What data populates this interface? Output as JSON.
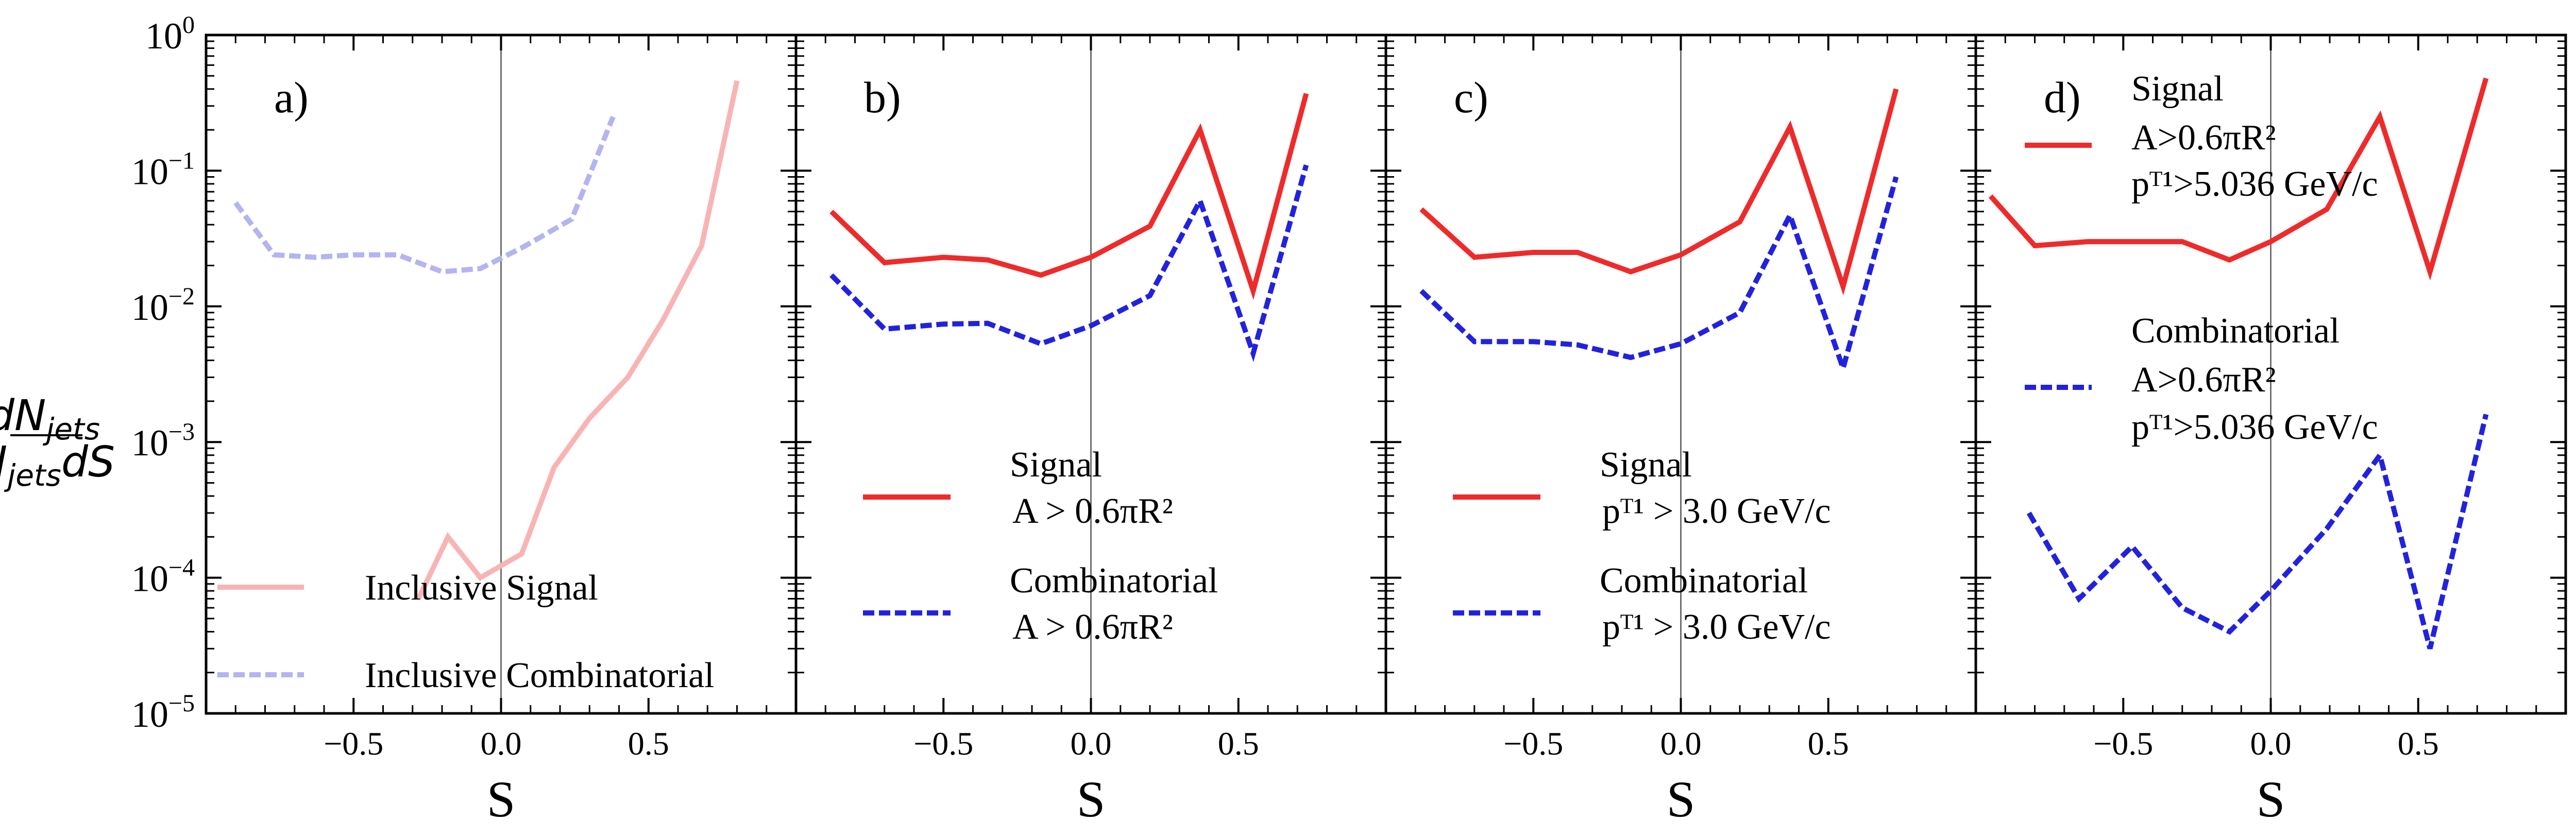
{
  "figure": {
    "ylabel_numerator": "dN",
    "ylabel_numerator_sub": "jets",
    "ylabel_denominator": "N",
    "ylabel_denominator_sub": "jets",
    "ylabel_denominator_tail": "dS",
    "xlabel": "S",
    "yticks": [
      {
        "mant": "10",
        "exp": "0"
      },
      {
        "mant": "10",
        "exp": "−1"
      },
      {
        "mant": "10",
        "exp": "−2"
      },
      {
        "mant": "10",
        "exp": "−3"
      },
      {
        "mant": "10",
        "exp": "−4"
      },
      {
        "mant": "10",
        "exp": "−5"
      }
    ],
    "xticks": [
      "−0.5",
      "0.0",
      "0.5"
    ],
    "xtick_values": [
      -0.5,
      0.0,
      0.5
    ],
    "colors": {
      "signal": "#ee2b2b",
      "signal_faded": "#f8b4b4",
      "combinatorial": "#2222dd",
      "combinatorial_faded": "#b4b4f0"
    }
  },
  "chart_data": [
    {
      "type": "line",
      "panel_label": "a)",
      "xlabel": "S",
      "ylabel": "dN_jets / (N_jets dS)",
      "xlim": [
        -1.0,
        1.0
      ],
      "ylim": [
        1e-05,
        1
      ],
      "yscale": "log",
      "vline_x": 0.0,
      "legend_position": "bottom-left",
      "series": [
        {
          "name": "Inclusive Signal",
          "legend": [
            "Inclusive Signal"
          ],
          "style": "solid",
          "color": "#f8b4b4",
          "x": [
            -0.28,
            -0.18,
            -0.07,
            0.07,
            0.18,
            0.3,
            0.43,
            0.55,
            0.68,
            0.8
          ],
          "y": [
            7e-05,
            0.0002,
            0.0001,
            0.00015,
            0.00065,
            0.0015,
            0.003,
            0.008,
            0.028,
            0.46
          ]
        },
        {
          "name": "Inclusive Combinatorial",
          "legend": [
            "Inclusive Combinatorial"
          ],
          "style": "dashed",
          "color": "#b4b4f0",
          "x": [
            -0.9,
            -0.77,
            -0.63,
            -0.5,
            -0.35,
            -0.2,
            -0.07,
            0.07,
            0.24,
            0.38
          ],
          "y": [
            0.058,
            0.024,
            0.023,
            0.024,
            0.024,
            0.018,
            0.019,
            0.027,
            0.044,
            0.25
          ]
        }
      ]
    },
    {
      "type": "line",
      "panel_label": "b)",
      "xlabel": "S",
      "xlim": [
        -1.0,
        1.0
      ],
      "ylim": [
        1e-05,
        1
      ],
      "yscale": "log",
      "vline_x": 0.0,
      "legend_position": "bottom-left",
      "series": [
        {
          "name": "Signal",
          "legend": [
            "Signal",
            "A > 0.6πR²"
          ],
          "style": "solid",
          "color": "#ee2b2b",
          "x": [
            -0.88,
            -0.7,
            -0.5,
            -0.35,
            -0.17,
            0.0,
            0.2,
            0.37,
            0.55,
            0.73
          ],
          "y": [
            0.05,
            0.021,
            0.023,
            0.022,
            0.017,
            0.023,
            0.039,
            0.2,
            0.013,
            0.37
          ]
        },
        {
          "name": "Combinatorial",
          "legend": [
            "Combinatorial",
            "A > 0.6πR²"
          ],
          "style": "dashed",
          "color": "#2222dd",
          "x": [
            -0.88,
            -0.7,
            -0.5,
            -0.35,
            -0.17,
            0.0,
            0.2,
            0.37,
            0.55,
            0.73
          ],
          "y": [
            0.017,
            0.0068,
            0.0074,
            0.0075,
            0.0053,
            0.0072,
            0.012,
            0.06,
            0.0045,
            0.11
          ]
        }
      ]
    },
    {
      "type": "line",
      "panel_label": "c)",
      "xlabel": "S",
      "xlim": [
        -1.0,
        1.0
      ],
      "ylim": [
        1e-05,
        1
      ],
      "yscale": "log",
      "vline_x": 0.0,
      "legend_position": "bottom-left",
      "series": [
        {
          "name": "Signal",
          "legend": [
            "Signal",
            "pᵀ¹ > 3.0 GeV/c"
          ],
          "style": "solid",
          "color": "#ee2b2b",
          "x": [
            -0.88,
            -0.7,
            -0.5,
            -0.35,
            -0.17,
            0.0,
            0.2,
            0.37,
            0.55,
            0.73
          ],
          "y": [
            0.052,
            0.023,
            0.025,
            0.025,
            0.018,
            0.024,
            0.042,
            0.21,
            0.014,
            0.4
          ]
        },
        {
          "name": "Combinatorial",
          "legend": [
            "Combinatorial",
            "pᵀ¹ > 3.0 GeV/c"
          ],
          "style": "dashed",
          "color": "#2222dd",
          "x": [
            -0.88,
            -0.7,
            -0.5,
            -0.35,
            -0.17,
            0.0,
            0.2,
            0.37,
            0.55,
            0.73
          ],
          "y": [
            0.013,
            0.0055,
            0.0055,
            0.0052,
            0.0042,
            0.0053,
            0.009,
            0.047,
            0.0035,
            0.09
          ]
        }
      ]
    },
    {
      "type": "line",
      "panel_label": "d)",
      "xlabel": "S",
      "xlim": [
        -1.0,
        1.0
      ],
      "ylim": [
        1e-05,
        1
      ],
      "yscale": "log",
      "vline_x": 0.0,
      "legend_position": "top-left",
      "series": [
        {
          "name": "Signal",
          "legend": [
            "Signal",
            "A>0.6πR²",
            "pᵀ¹>5.036 GeV/c"
          ],
          "style": "solid",
          "color": "#ee2b2b",
          "x": [
            -0.95,
            -0.8,
            -0.62,
            -0.47,
            -0.3,
            -0.14,
            0.0,
            0.19,
            0.37,
            0.54,
            0.73
          ],
          "y": [
            0.065,
            0.028,
            0.03,
            0.03,
            0.03,
            0.022,
            0.03,
            0.052,
            0.25,
            0.018,
            0.48
          ]
        },
        {
          "name": "Combinatorial",
          "legend": [
            "Combinatorial",
            "A>0.6πR²",
            "pᵀ¹>5.036 GeV/c"
          ],
          "style": "dashed",
          "color": "#2222dd",
          "x": [
            -0.82,
            -0.65,
            -0.47,
            -0.3,
            -0.14,
            0.0,
            0.19,
            0.37,
            0.54,
            0.73
          ],
          "y": [
            0.0003,
            7e-05,
            0.00017,
            6e-05,
            4e-05,
            8e-05,
            0.00023,
            0.0008,
            3e-05,
            0.0016
          ]
        }
      ]
    }
  ]
}
